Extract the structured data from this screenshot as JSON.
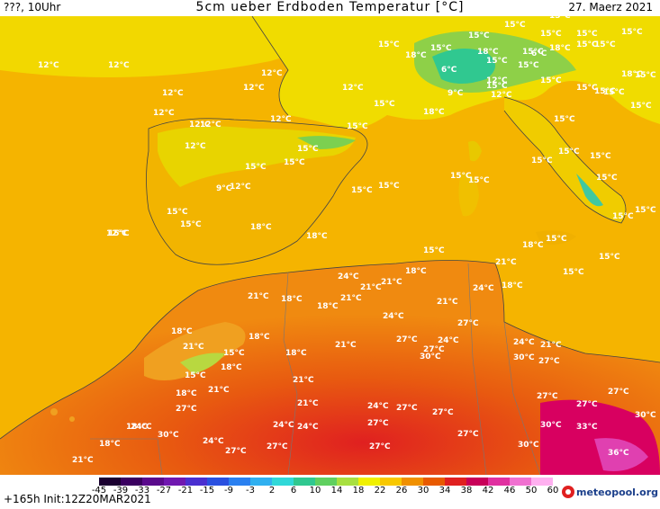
{
  "header": {
    "left": "???, 10Uhr",
    "title": "5cm ueber Erdboden Temperatur [°C]",
    "date": "27. Maerz 2021"
  },
  "footer": {
    "run": "+165h  Init:12Z20MAR2021",
    "logo": "meteopool.org"
  },
  "colorbar": {
    "ticks": [
      "-45",
      "-39",
      "-33",
      "-27",
      "-21",
      "-15",
      "-9",
      "-3",
      "2",
      "6",
      "10",
      "14",
      "18",
      "22",
      "26",
      "30",
      "34",
      "38",
      "42",
      "46",
      "50",
      "60"
    ],
    "colors": [
      "#1a0030",
      "#3a0060",
      "#5a0a8c",
      "#7018b0",
      "#4a2fd0",
      "#2a50e0",
      "#2a80f0",
      "#30b0f0",
      "#30d8d8",
      "#30c890",
      "#60d060",
      "#a8e040",
      "#f0f000",
      "#f8c800",
      "#f09000",
      "#e85a00",
      "#e02020",
      "#c80058",
      "#e030a0",
      "#f070d0",
      "#ffb0f0"
    ]
  },
  "map": {
    "region": "Iberia / Western Mediterranean / North Africa",
    "labels": [
      {
        "t": "12°C"
      },
      {
        "t": "12°C"
      },
      {
        "t": "12°C"
      },
      {
        "t": "12°C"
      },
      {
        "t": "12°C"
      },
      {
        "t": "12°C"
      },
      {
        "t": "12°C"
      },
      {
        "t": "12°C"
      },
      {
        "t": "12°C"
      },
      {
        "t": "15°C"
      },
      {
        "t": "15°C"
      },
      {
        "t": "18°C"
      },
      {
        "t": "15°C"
      },
      {
        "t": "15°C"
      },
      {
        "t": "6°C"
      },
      {
        "t": "15°C"
      },
      {
        "t": "15°C"
      },
      {
        "t": "18°C"
      },
      {
        "t": "15°C"
      },
      {
        "t": "15°C"
      },
      {
        "t": "15°C"
      },
      {
        "t": "9°C"
      },
      {
        "t": "12°C"
      },
      {
        "t": "6°C"
      },
      {
        "t": "15°C"
      },
      {
        "t": "12°C"
      },
      {
        "t": "12°C"
      },
      {
        "t": "15°C"
      },
      {
        "t": "12°C"
      },
      {
        "t": "15°C"
      },
      {
        "t": "15°C"
      },
      {
        "t": "15°C"
      },
      {
        "t": "15°C"
      },
      {
        "t": "15°C"
      },
      {
        "t": "15°C"
      },
      {
        "t": "18°C"
      },
      {
        "t": "18°C"
      },
      {
        "t": "15°C"
      },
      {
        "t": "18°C"
      },
      {
        "t": "15°C"
      },
      {
        "t": "15°C"
      },
      {
        "t": "15°C"
      },
      {
        "t": "15°C"
      },
      {
        "t": "15°C"
      },
      {
        "t": "15°C"
      },
      {
        "t": "15°C"
      },
      {
        "t": "15°C"
      },
      {
        "t": "15°C"
      },
      {
        "t": "15°C"
      },
      {
        "t": "12°C"
      },
      {
        "t": "15°C"
      },
      {
        "t": "18°C"
      },
      {
        "t": "15°C"
      },
      {
        "t": "9°C"
      },
      {
        "t": "15°C"
      },
      {
        "t": "12°C"
      },
      {
        "t": "15°C"
      },
      {
        "t": "15°C"
      },
      {
        "t": "18°C"
      },
      {
        "t": "15°C"
      },
      {
        "t": "15°C"
      },
      {
        "t": "15°C"
      },
      {
        "t": "15°C"
      },
      {
        "t": "15°C"
      },
      {
        "t": "15°C"
      },
      {
        "t": "15°C"
      },
      {
        "t": "15°C"
      },
      {
        "t": "18°C"
      },
      {
        "t": "15°C"
      },
      {
        "t": "15°C"
      },
      {
        "t": "24°C"
      },
      {
        "t": "18°C"
      },
      {
        "t": "21°C"
      },
      {
        "t": "21°C"
      },
      {
        "t": "21°C"
      },
      {
        "t": "18°C"
      },
      {
        "t": "21°C"
      },
      {
        "t": "24°C"
      },
      {
        "t": "18°C"
      },
      {
        "t": "21°C"
      },
      {
        "t": "18°C"
      },
      {
        "t": "21°C"
      },
      {
        "t": "24°C"
      },
      {
        "t": "27°C"
      },
      {
        "t": "18°C"
      },
      {
        "t": "18°C"
      },
      {
        "t": "21°C"
      },
      {
        "t": "15°C"
      },
      {
        "t": "18°C"
      },
      {
        "t": "21°C"
      },
      {
        "t": "27°C"
      },
      {
        "t": "24°C"
      },
      {
        "t": "27°C"
      },
      {
        "t": "30°C"
      },
      {
        "t": "24°C"
      },
      {
        "t": "21°C"
      },
      {
        "t": "30°C"
      },
      {
        "t": "27°C"
      },
      {
        "t": "18°C"
      },
      {
        "t": "18°C"
      },
      {
        "t": "21°C"
      },
      {
        "t": "15°C"
      },
      {
        "t": "21°C"
      },
      {
        "t": "21°C"
      },
      {
        "t": "27°C"
      },
      {
        "t": "24°C"
      },
      {
        "t": "27°C"
      },
      {
        "t": "27°C"
      },
      {
        "t": "27°C"
      },
      {
        "t": "27°C"
      },
      {
        "t": "18°C"
      },
      {
        "t": "24°C"
      },
      {
        "t": "30°C"
      },
      {
        "t": "24°C"
      },
      {
        "t": "27°C"
      },
      {
        "t": "24°C"
      },
      {
        "t": "27°C"
      },
      {
        "t": "27°C"
      },
      {
        "t": "30°C"
      },
      {
        "t": "33°C"
      },
      {
        "t": "30°C"
      },
      {
        "t": "18°C"
      },
      {
        "t": "27°C"
      },
      {
        "t": "27°C"
      },
      {
        "t": "30°C"
      },
      {
        "t": "27°C"
      },
      {
        "t": "36°C"
      },
      {
        "t": "21°C"
      },
      {
        "t": "24°C"
      }
    ]
  }
}
